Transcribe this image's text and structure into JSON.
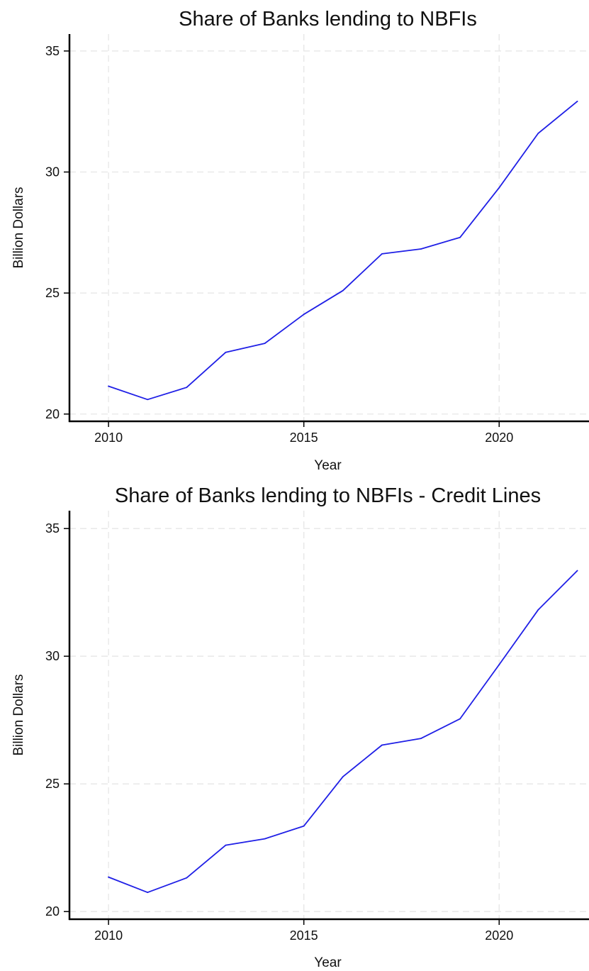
{
  "chart_data": [
    {
      "type": "line",
      "title": "Share of Banks lending to NBFIs",
      "xlabel": "Year",
      "ylabel": "Billion Dollars",
      "xlim": [
        2009,
        2022.3
      ],
      "ylim": [
        19.7,
        35.7
      ],
      "xticks": [
        2010,
        2015,
        2020
      ],
      "yticks": [
        20,
        25,
        30,
        35
      ],
      "grid": true,
      "series": [
        {
          "color": "#1f1fe6",
          "x": [
            2010,
            2011,
            2012,
            2013,
            2014,
            2015,
            2016,
            2017,
            2018,
            2019,
            2020,
            2021,
            2022
          ],
          "y": [
            21.15,
            20.6,
            21.1,
            22.55,
            22.92,
            24.12,
            25.1,
            26.62,
            26.82,
            27.3,
            29.35,
            31.6,
            32.92
          ]
        }
      ]
    },
    {
      "type": "line",
      "title": "Share of Banks lending to NBFIs - Credit Lines",
      "xlabel": "Year",
      "ylabel": "Billion Dollars",
      "xlim": [
        2009,
        2022.3
      ],
      "ylim": [
        19.7,
        35.7
      ],
      "xticks": [
        2010,
        2015,
        2020
      ],
      "yticks": [
        20,
        25,
        30,
        35
      ],
      "grid": true,
      "series": [
        {
          "color": "#1f1fe6",
          "x": [
            2010,
            2011,
            2012,
            2013,
            2014,
            2015,
            2016,
            2017,
            2018,
            2019,
            2020,
            2021,
            2022
          ],
          "y": [
            21.35,
            20.75,
            21.32,
            22.6,
            22.85,
            23.35,
            25.28,
            26.52,
            26.78,
            27.55,
            29.67,
            31.82,
            33.35
          ]
        }
      ]
    }
  ]
}
